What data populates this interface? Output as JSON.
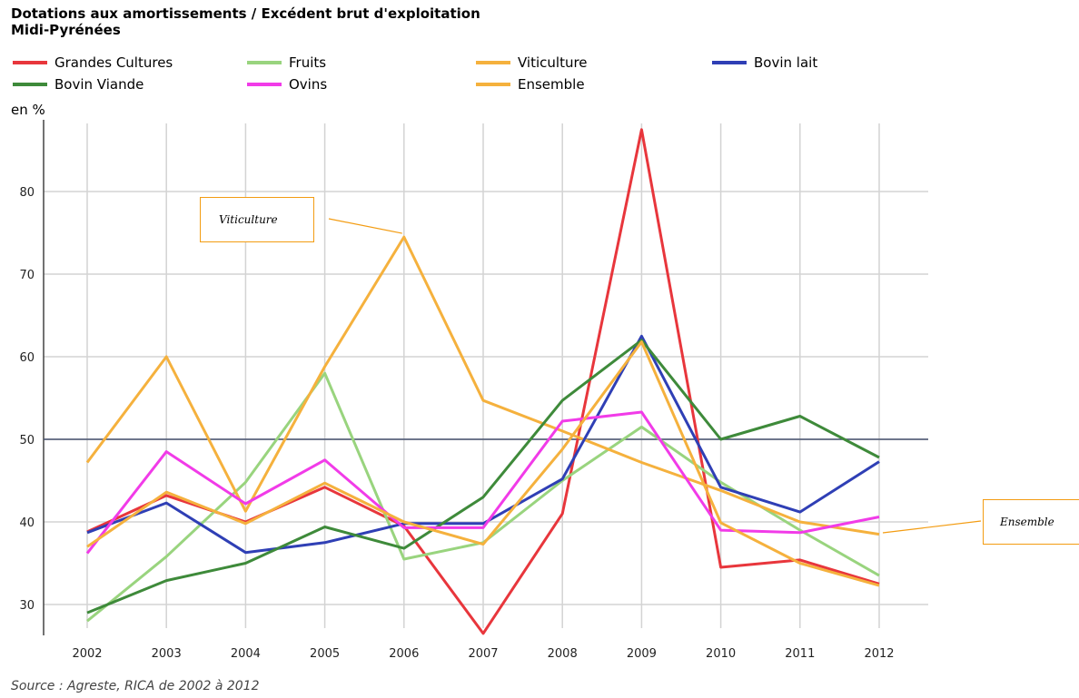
{
  "title_line1": "Dotations aux amortissements / Excédent brut d'exploitation",
  "title_line2": "Midi-Pyrénées",
  "unit_label": "en %",
  "source": "Source : Agreste, RICA de 2002 à 2012",
  "chart_data": {
    "type": "line",
    "title": "Dotations aux amortissements / Excédent brut d'exploitation",
    "subtitle": "Midi-Pyrénées",
    "ylabel": "en %",
    "x": [
      "2002",
      "2003",
      "2004",
      "2005",
      "2006",
      "2007",
      "2008",
      "2009",
      "2010",
      "2011",
      "2012"
    ],
    "yticks": [
      30,
      40,
      50,
      60,
      70,
      80
    ],
    "ylim": [
      26,
      90
    ],
    "grid": true,
    "reference_line": 50,
    "legend_placement": "top",
    "series": [
      {
        "name": "Grandes Cultures",
        "color": "#e8363c",
        "values": [
          38.8,
          43.2,
          40.0,
          44.2,
          39.5,
          26.5,
          41.0,
          87.5,
          34.5,
          35.4,
          32.5
        ]
      },
      {
        "name": "Fruits",
        "color": "#99d47e",
        "values": [
          28.0,
          35.8,
          44.8,
          58.0,
          35.5,
          37.5,
          45.0,
          51.5,
          44.8,
          39.0,
          33.5
        ]
      },
      {
        "name": "Viticulture",
        "color": "#f5b13d",
        "values": [
          47.2,
          60.0,
          41.3,
          58.8,
          74.5,
          54.7,
          51.0,
          47.2,
          43.8,
          40.0,
          38.5
        ]
      },
      {
        "name": "Bovin lait",
        "color": "#2f3fb5",
        "values": [
          38.7,
          42.3,
          36.3,
          37.5,
          39.8,
          39.8,
          45.2,
          62.5,
          44.2,
          41.2,
          47.3
        ]
      },
      {
        "name": "Bovin Viande",
        "color": "#3e8a3a",
        "values": [
          29.0,
          32.9,
          35.0,
          39.4,
          36.8,
          43.0,
          54.7,
          62.0,
          50.0,
          52.8,
          47.8
        ]
      },
      {
        "name": "Ovins",
        "color": "#f13be8",
        "values": [
          36.2,
          48.5,
          42.2,
          47.5,
          39.3,
          39.3,
          52.2,
          53.3,
          39.0,
          38.7,
          40.6
        ]
      },
      {
        "name": "Ensemble",
        "color": "#f5b13d",
        "values": [
          37.0,
          43.6,
          39.8,
          44.7,
          40.0,
          37.3,
          48.8,
          61.8,
          39.9,
          35.0,
          32.3
        ]
      }
    ],
    "annotations": [
      {
        "text": "Viticulture",
        "series": "Viticulture"
      },
      {
        "text": "Ensemble",
        "series": "Ensemble"
      }
    ]
  }
}
